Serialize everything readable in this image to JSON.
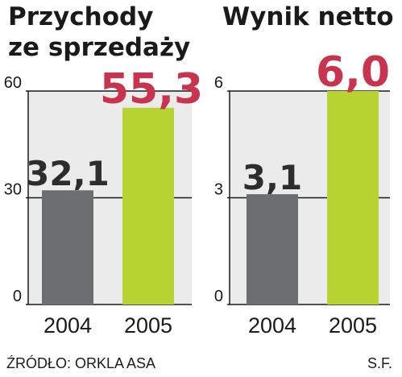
{
  "chart_data": [
    {
      "type": "bar",
      "title_lines": [
        "Przychody",
        "ze sprzedaży"
      ],
      "categories": [
        "2004",
        "2005"
      ],
      "values": [
        32.1,
        55.3
      ],
      "value_labels": [
        "32,1",
        "55,3"
      ],
      "yticks": [
        "0",
        "30",
        "60"
      ],
      "ylim": [
        0,
        60
      ],
      "colors": [
        "#6d6e70",
        "#b8d432"
      ],
      "label_colors": [
        "#2d2d2d",
        "#c8334e"
      ]
    },
    {
      "type": "bar",
      "title_lines": [
        "Wynik netto"
      ],
      "categories": [
        "2004",
        "2005"
      ],
      "values": [
        3.1,
        6.0
      ],
      "value_labels": [
        "3,1",
        "6,0"
      ],
      "yticks": [
        "0",
        "3",
        "6"
      ],
      "ylim": [
        0,
        6
      ],
      "colors": [
        "#6d6e70",
        "#b8d432"
      ],
      "label_colors": [
        "#2d2d2d",
        "#c8334e"
      ]
    }
  ],
  "footer": {
    "source": "ŹRÓDŁO: ORKLA ASA",
    "author": "S.F."
  },
  "colors": {
    "panel_background": "#ebebeb",
    "axis": "#1a1a1a"
  }
}
